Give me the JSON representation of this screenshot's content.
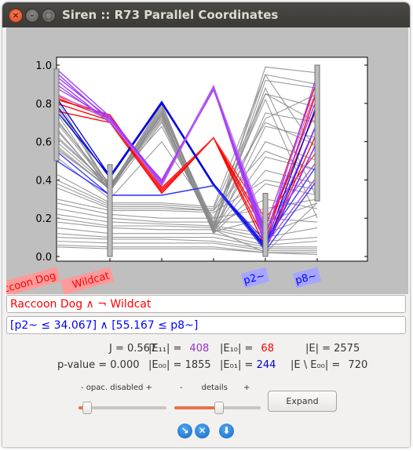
{
  "window": {
    "title": "Siren :: R73 Parallel Coordinates"
  },
  "window_buttons": {
    "close": "×",
    "minimize": "–",
    "maximize": "□"
  },
  "chart_data": {
    "type": "line",
    "subtype": "parallel-coordinates",
    "axes": [
      "Raccoon Dog",
      "Wildcat",
      "",
      "",
      "p2~",
      "p8~"
    ],
    "axis_label_colors": [
      "#ff0000",
      "#ff0000",
      null,
      null,
      "#0000ff",
      "#0000ff"
    ],
    "ylim": [
      0,
      1
    ],
    "yticks": [
      0.0,
      0.2,
      0.4,
      0.6,
      0.8,
      1.0
    ],
    "ytick_labels": [
      "0.0",
      "0.2",
      "0.4",
      "0.6",
      "0.8",
      "1.0"
    ],
    "selection_bars": [
      {
        "axis": "Raccoon Dog",
        "range": [
          0.5,
          0.98
        ]
      },
      {
        "axis": "Wildcat",
        "range": [
          0.0,
          0.48
        ]
      },
      {
        "axis": "p2~",
        "range": [
          0.0,
          0.33
        ]
      },
      {
        "axis": "p8~",
        "range": [
          0.29,
          1.0
        ]
      }
    ],
    "series": [
      {
        "color": "#ff0000",
        "values": [
          0.83,
          0.72,
          0.35,
          0.62,
          0.08,
          0.87
        ]
      },
      {
        "color": "#ff0000",
        "values": [
          0.82,
          0.74,
          0.36,
          0.62,
          0.12,
          0.78
        ]
      },
      {
        "color": "#ff0000",
        "values": [
          0.8,
          0.71,
          0.34,
          0.62,
          0.05,
          0.65
        ]
      },
      {
        "color": "#ff0000",
        "values": [
          0.76,
          0.7,
          0.33,
          0.62,
          0.15,
          0.92
        ]
      },
      {
        "color": "#ff3333",
        "values": [
          0.84,
          0.73,
          0.35,
          0.62,
          0.2,
          0.55
        ]
      },
      {
        "color": "#0000dd",
        "values": [
          0.76,
          0.42,
          0.81,
          0.38,
          0.04,
          0.6
        ]
      },
      {
        "color": "#0000dd",
        "values": [
          0.83,
          0.42,
          0.8,
          0.38,
          0.06,
          0.8
        ]
      },
      {
        "color": "#0000dd",
        "values": [
          0.79,
          0.41,
          0.8,
          0.37,
          0.05,
          0.7
        ]
      },
      {
        "color": "#3333ff",
        "values": [
          0.55,
          0.32,
          0.32,
          0.37,
          0.08,
          0.48
        ]
      },
      {
        "color": "#3333ff",
        "values": [
          0.5,
          0.32,
          0.32,
          0.37,
          0.03,
          0.4
        ]
      },
      {
        "color": "#9933ff",
        "values": [
          0.98,
          0.73,
          0.39,
          0.89,
          0.1,
          0.95
        ]
      },
      {
        "color": "#9933ff",
        "values": [
          0.96,
          0.71,
          0.38,
          0.88,
          0.12,
          0.83
        ]
      },
      {
        "color": "#9933ff",
        "values": [
          0.94,
          0.72,
          0.37,
          0.89,
          0.08,
          0.7
        ]
      },
      {
        "color": "#9933ff",
        "values": [
          0.92,
          0.7,
          0.4,
          0.88,
          0.05,
          0.6
        ]
      },
      {
        "color": "#aa44ee",
        "values": [
          0.9,
          0.7,
          0.39,
          0.87,
          0.14,
          0.5
        ]
      },
      {
        "color": "#aa44ee",
        "values": [
          0.88,
          0.72,
          0.38,
          0.88,
          0.06,
          0.42
        ]
      },
      {
        "color": "#bb66ee",
        "values": [
          0.85,
          0.71,
          0.37,
          0.89,
          0.16,
          0.88
        ]
      },
      {
        "color": "#8a8a8a",
        "values": [
          0.82,
          0.36,
          0.79,
          0.15,
          0.99,
          0.96
        ]
      },
      {
        "color": "#8a8a8a",
        "values": [
          0.8,
          0.35,
          0.78,
          0.14,
          0.92,
          0.88
        ]
      },
      {
        "color": "#8a8a8a",
        "values": [
          0.78,
          0.37,
          0.76,
          0.16,
          0.85,
          0.78
        ]
      },
      {
        "color": "#8a8a8a",
        "values": [
          0.75,
          0.34,
          0.75,
          0.13,
          0.75,
          0.7
        ]
      },
      {
        "color": "#8a8a8a",
        "values": [
          0.7,
          0.36,
          0.74,
          0.12,
          0.68,
          0.62
        ]
      },
      {
        "color": "#8a8a8a",
        "values": [
          0.66,
          0.35,
          0.73,
          0.15,
          0.6,
          0.5
        ]
      },
      {
        "color": "#8a8a8a",
        "values": [
          0.62,
          0.37,
          0.72,
          0.14,
          0.52,
          0.45
        ]
      },
      {
        "color": "#8a8a8a",
        "values": [
          0.6,
          0.36,
          0.71,
          0.13,
          0.45,
          0.38
        ]
      },
      {
        "color": "#8a8a8a",
        "values": [
          0.58,
          0.35,
          0.75,
          0.12,
          0.38,
          0.32
        ]
      },
      {
        "color": "#8a8a8a",
        "values": [
          0.56,
          0.36,
          0.74,
          0.16,
          0.3,
          0.25
        ]
      },
      {
        "color": "#8a8a8a",
        "values": [
          0.63,
          0.37,
          0.77,
          0.18,
          0.95,
          0.55
        ]
      },
      {
        "color": "#8a8a8a",
        "values": [
          0.67,
          0.34,
          0.7,
          0.13,
          0.2,
          0.18
        ]
      },
      {
        "color": "#8a8a8a",
        "values": [
          0.71,
          0.38,
          0.68,
          0.15,
          0.88,
          0.3
        ]
      },
      {
        "color": "#8a8a8a",
        "values": [
          0.57,
          0.35,
          0.76,
          0.17,
          0.72,
          0.85
        ]
      },
      {
        "color": "#8a8a8a",
        "values": [
          0.43,
          0.28,
          0.28,
          0.26,
          0.95,
          0.9
        ]
      },
      {
        "color": "#8a8a8a",
        "values": [
          0.4,
          0.27,
          0.27,
          0.25,
          0.85,
          0.7
        ]
      },
      {
        "color": "#8a8a8a",
        "values": [
          0.38,
          0.26,
          0.26,
          0.24,
          0.7,
          0.58
        ]
      },
      {
        "color": "#8a8a8a",
        "values": [
          0.36,
          0.25,
          0.25,
          0.24,
          0.55,
          0.45
        ]
      },
      {
        "color": "#8a8a8a",
        "values": [
          0.3,
          0.24,
          0.24,
          0.23,
          0.4,
          0.35
        ]
      },
      {
        "color": "#8a8a8a",
        "values": [
          0.28,
          0.22,
          0.2,
          0.2,
          0.25,
          0.3
        ]
      },
      {
        "color": "#8a8a8a",
        "values": [
          0.25,
          0.2,
          0.18,
          0.18,
          0.18,
          0.28
        ]
      },
      {
        "color": "#8a8a8a",
        "values": [
          0.22,
          0.18,
          0.17,
          0.16,
          0.12,
          0.22
        ]
      },
      {
        "color": "#8a8a8a",
        "values": [
          0.2,
          0.16,
          0.16,
          0.15,
          0.1,
          0.15
        ]
      },
      {
        "color": "#8a8a8a",
        "values": [
          0.18,
          0.15,
          0.14,
          0.14,
          0.08,
          0.1
        ]
      },
      {
        "color": "#8a8a8a",
        "values": [
          0.15,
          0.12,
          0.12,
          0.12,
          0.06,
          0.08
        ]
      },
      {
        "color": "#8a8a8a",
        "values": [
          0.12,
          0.1,
          0.1,
          0.1,
          0.05,
          0.05
        ]
      },
      {
        "color": "#8a8a8a",
        "values": [
          0.1,
          0.09,
          0.09,
          0.08,
          0.04,
          0.04
        ]
      },
      {
        "color": "#8a8a8a",
        "values": [
          0.08,
          0.07,
          0.07,
          0.07,
          0.03,
          0.03
        ]
      },
      {
        "color": "#8a8a8a",
        "values": [
          0.06,
          0.05,
          0.05,
          0.05,
          0.02,
          0.02
        ]
      },
      {
        "color": "#8a8a8a",
        "values": [
          0.05,
          0.04,
          0.04,
          0.04,
          0.02,
          0.01
        ]
      },
      {
        "color": "#8a8a8a",
        "values": [
          0.72,
          0.36,
          0.8,
          0.14,
          0.02,
          0.28
        ]
      },
      {
        "color": "#8a8a8a",
        "values": [
          0.52,
          0.3,
          0.6,
          0.2,
          0.82,
          0.2
        ]
      }
    ]
  },
  "query": {
    "line1": "Raccoon Dog ∧ ¬ Wildcat",
    "line2": "[p2~ ≤ 34.067] ∧ [55.167 ≤ p8~]"
  },
  "stats": {
    "j_label": "J = ",
    "j_value": "0.567",
    "e11_label": "|E₁₁| =",
    "e11_value": "408",
    "e10_label": "|E₁₀| =",
    "e10_value": "68",
    "e_label": "|E| = ",
    "e_value": "2575",
    "p_label": "p-value = ",
    "p_value": "0.000",
    "e00_label": "|E₀₀| = ",
    "e00_value": "1855",
    "e01_label": "|E₀₁| = ",
    "e01_value": "244",
    "ediff_label": "|E \\ E₀₀| = ",
    "ediff_value": "720"
  },
  "controls": {
    "opacity_minus": "-",
    "opacity_label": "opac. disabled",
    "opacity_plus": "+",
    "details_minus": "-",
    "details_label": "details",
    "details_plus": "+",
    "opacity_level": 0.1,
    "details_level": 0.52,
    "expand_button": "Expand"
  },
  "icons": {
    "next": "next-icon",
    "clear": "clear-icon",
    "save": "save-icon",
    "next_glyph": "↘",
    "clear_glyph": "✕",
    "save_glyph": "⬇"
  },
  "colors": {
    "positive": "#ff0000",
    "negative": "#0000ff",
    "overlap": "#9932cc",
    "other": "#8a8a8a",
    "slider_fill": "#e8724a"
  }
}
